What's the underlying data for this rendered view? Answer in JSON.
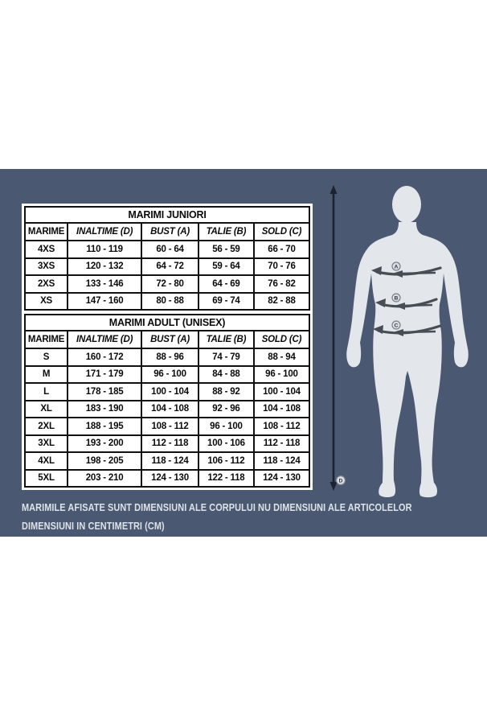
{
  "tables": [
    {
      "title": "MARIMI JUNIORI",
      "columns": [
        "MARIME",
        "INALTIME (D)",
        "BUST (A)",
        "TALIE (B)",
        "SOLD (C)"
      ],
      "rows": [
        [
          "4XS",
          "110 - 119",
          "60 - 64",
          "56 - 59",
          "66 - 70"
        ],
        [
          "3XS",
          "120 - 132",
          "64 - 72",
          "59 - 64",
          "70 - 76"
        ],
        [
          "2XS",
          "133 - 146",
          "72 - 80",
          "64 - 69",
          "76 - 82"
        ],
        [
          "XS",
          "147 - 160",
          "80 - 88",
          "69 - 74",
          "82 - 88"
        ]
      ]
    },
    {
      "title": "MARIMI ADULT (UNISEX)",
      "columns": [
        "MARIME",
        "INALTIME (D)",
        "BUST (A)",
        "TALIE (B)",
        "SOLD (C)"
      ],
      "rows": [
        [
          "S",
          "160 - 172",
          "88 - 96",
          "74 - 79",
          "88 - 94"
        ],
        [
          "M",
          "171 - 179",
          "96 - 100",
          "84 - 88",
          "96 - 100"
        ],
        [
          "L",
          "178 - 185",
          "100 - 104",
          "88 - 92",
          "100 - 104"
        ],
        [
          "XL",
          "183 - 190",
          "104 - 108",
          "92 - 96",
          "104 - 108"
        ],
        [
          "2XL",
          "188 - 195",
          "108 - 112",
          "96 - 100",
          "108 - 112"
        ],
        [
          "3XL",
          "193 - 200",
          "112 - 118",
          "100 - 106",
          "112 - 118"
        ],
        [
          "4XL",
          "198 - 205",
          "118 - 124",
          "106 - 112",
          "118 - 124"
        ],
        [
          "5XL",
          "203 - 210",
          "124 - 130",
          "122 - 118",
          "124 - 130"
        ]
      ]
    }
  ],
  "figure": {
    "labels": [
      "A",
      "B",
      "C",
      "D"
    ]
  },
  "footnote": {
    "line1": "MARIMILE AFISATE SUNT DIMENSIUNI ALE CORPULUI NU DIMENSIUNI ALE ARTICOLELOR",
    "line2": "DIMENSIUNI IN CENTIMETRI (CM)"
  },
  "colors": {
    "panel": "#4a5871",
    "table-border": "#111111",
    "table-text": "#0b0b0b",
    "silhouette": "#e3e6ea",
    "measure-arrow": "#474d55",
    "height-arrow": "#1b2330",
    "footnote-text": "#dde2e9",
    "label-bg": "#d9dce0",
    "label-ring": "#7a828b",
    "label-text": "#2e3540"
  }
}
